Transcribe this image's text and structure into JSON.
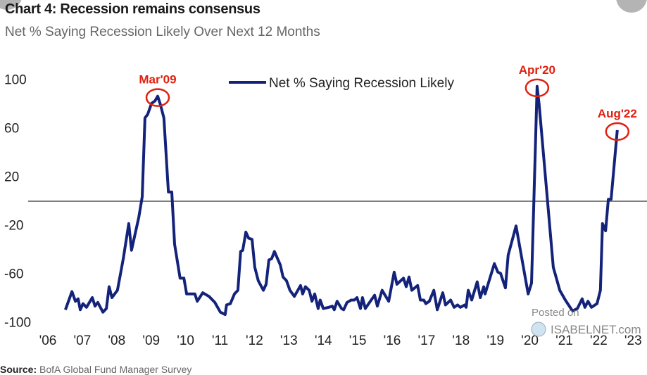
{
  "title": "Chart 4: Recession remains consensus",
  "subtitle": "Net % Saying Recession Likely Over Next 12 Months",
  "source_label": "Source:",
  "source_text": "BofA Global Fund Manager Survey",
  "watermark": {
    "line1": "Posted on",
    "line2": "ISABELNET.com"
  },
  "colors": {
    "series": "#14237a",
    "annotation": "#e02010",
    "zero_line": "#555555"
  },
  "chart_data": {
    "type": "line",
    "title": "Chart 4: Recession remains consensus",
    "subtitle": "Net % Saying Recession Likely Over Next 12 Months",
    "xlabel": "",
    "ylabel": "",
    "ylim": [
      -100,
      100
    ],
    "xlim": [
      2006,
      2023
    ],
    "y_ticks": [
      "100",
      "60",
      "20",
      "-20",
      "-60",
      "-100"
    ],
    "y_tick_values": [
      100,
      60,
      20,
      -20,
      -60,
      -100
    ],
    "x_ticks": [
      "'06",
      "'07",
      "'08",
      "'09",
      "'10",
      "'11",
      "'12",
      "'13",
      "'14",
      "'15",
      "'16",
      "'17",
      "'18",
      "'19",
      "'20",
      "'21",
      "'22",
      "'23"
    ],
    "grid": false,
    "reference_line": 0,
    "legend": {
      "placement": "top-center",
      "entries": [
        "Net % Saying Recession Likely"
      ]
    },
    "annotations": [
      {
        "label": "Mar'09",
        "x": 2009.19,
        "y": 86
      },
      {
        "label": "Apr'20",
        "x": 2020.21,
        "y": 94
      },
      {
        "label": "Aug'22",
        "x": 2022.54,
        "y": 58
      }
    ],
    "series": [
      {
        "name": "Net % Saying Recession Likely",
        "x": [
          2006.51,
          2006.7,
          2006.8,
          2006.88,
          2006.94,
          2007.02,
          2007.12,
          2007.29,
          2007.37,
          2007.45,
          2007.6,
          2007.7,
          2007.78,
          2007.86,
          2008.02,
          2008.19,
          2008.35,
          2008.43,
          2008.64,
          2008.74,
          2008.82,
          2008.9,
          2009.01,
          2009.11,
          2009.19,
          2009.27,
          2009.37,
          2009.5,
          2009.6,
          2009.68,
          2009.84,
          2009.95,
          2010.03,
          2010.27,
          2010.34,
          2010.5,
          2010.68,
          2010.85,
          2011.01,
          2011.15,
          2011.19,
          2011.3,
          2011.42,
          2011.52,
          2011.6,
          2011.66,
          2011.75,
          2011.83,
          2011.93,
          2012.01,
          2012.11,
          2012.26,
          2012.34,
          2012.42,
          2012.5,
          2012.58,
          2012.75,
          2012.83,
          2012.93,
          2013.03,
          2013.16,
          2013.34,
          2013.4,
          2013.48,
          2013.59,
          2013.67,
          2013.75,
          2013.85,
          2013.91,
          2014.0,
          2014.16,
          2014.26,
          2014.32,
          2014.4,
          2014.53,
          2014.59,
          2014.69,
          2014.81,
          2014.9,
          2014.98,
          2015.08,
          2015.14,
          2015.22,
          2015.39,
          2015.49,
          2015.57,
          2015.71,
          2015.9,
          2016.06,
          2016.14,
          2016.33,
          2016.41,
          2016.49,
          2016.57,
          2016.74,
          2016.82,
          2016.92,
          2016.98,
          2017.08,
          2017.21,
          2017.31,
          2017.47,
          2017.55,
          2017.7,
          2017.8,
          2017.9,
          2017.98,
          2018.11,
          2018.15,
          2018.21,
          2018.31,
          2018.47,
          2018.56,
          2018.66,
          2018.7,
          2018.97,
          2019.07,
          2019.15,
          2019.29,
          2019.37,
          2019.6,
          2019.95,
          2020.05,
          2020.21,
          2020.27,
          2020.68,
          2020.87,
          2021.03,
          2021.24,
          2021.38,
          2021.52,
          2021.6,
          2021.69,
          2021.79,
          2021.95,
          2022.05,
          2022.11,
          2022.2,
          2022.28,
          2022.36,
          2022.54
        ],
        "values": [
          -90,
          -75,
          -83,
          -81,
          -90,
          -85,
          -88,
          -80,
          -87,
          -84,
          -92,
          -89,
          -71,
          -80,
          -74,
          -48,
          -19,
          -41,
          -14,
          3,
          68,
          71,
          80,
          82,
          86,
          79,
          68,
          7,
          7,
          -36,
          -64,
          -64,
          -77,
          -77,
          -83,
          -76,
          -79,
          -84,
          -92,
          -94,
          -86,
          -85,
          -77,
          -74,
          -42,
          -41,
          -26,
          -31,
          -32,
          -55,
          -66,
          -74,
          -69,
          -49,
          -48,
          -42,
          -53,
          -63,
          -66,
          -74,
          -79,
          -70,
          -77,
          -71,
          -74,
          -83,
          -77,
          -89,
          -82,
          -89,
          -88,
          -87,
          -90,
          -83,
          -89,
          -90,
          -84,
          -82,
          -82,
          -80,
          -89,
          -80,
          -89,
          -82,
          -78,
          -87,
          -74,
          -83,
          -59,
          -69,
          -64,
          -71,
          -63,
          -74,
          -70,
          -82,
          -82,
          -85,
          -83,
          -74,
          -90,
          -76,
          -86,
          -82,
          -88,
          -86,
          -88,
          -86,
          -88,
          -74,
          -82,
          -67,
          -80,
          -71,
          -77,
          -52,
          -59,
          -60,
          -72,
          -45,
          -21,
          -77,
          -68,
          94,
          79,
          -55,
          -74,
          -82,
          -91,
          -89,
          -81,
          -88,
          -83,
          -88,
          -85,
          -74,
          -19,
          -25,
          1,
          1,
          58
        ]
      }
    ]
  }
}
